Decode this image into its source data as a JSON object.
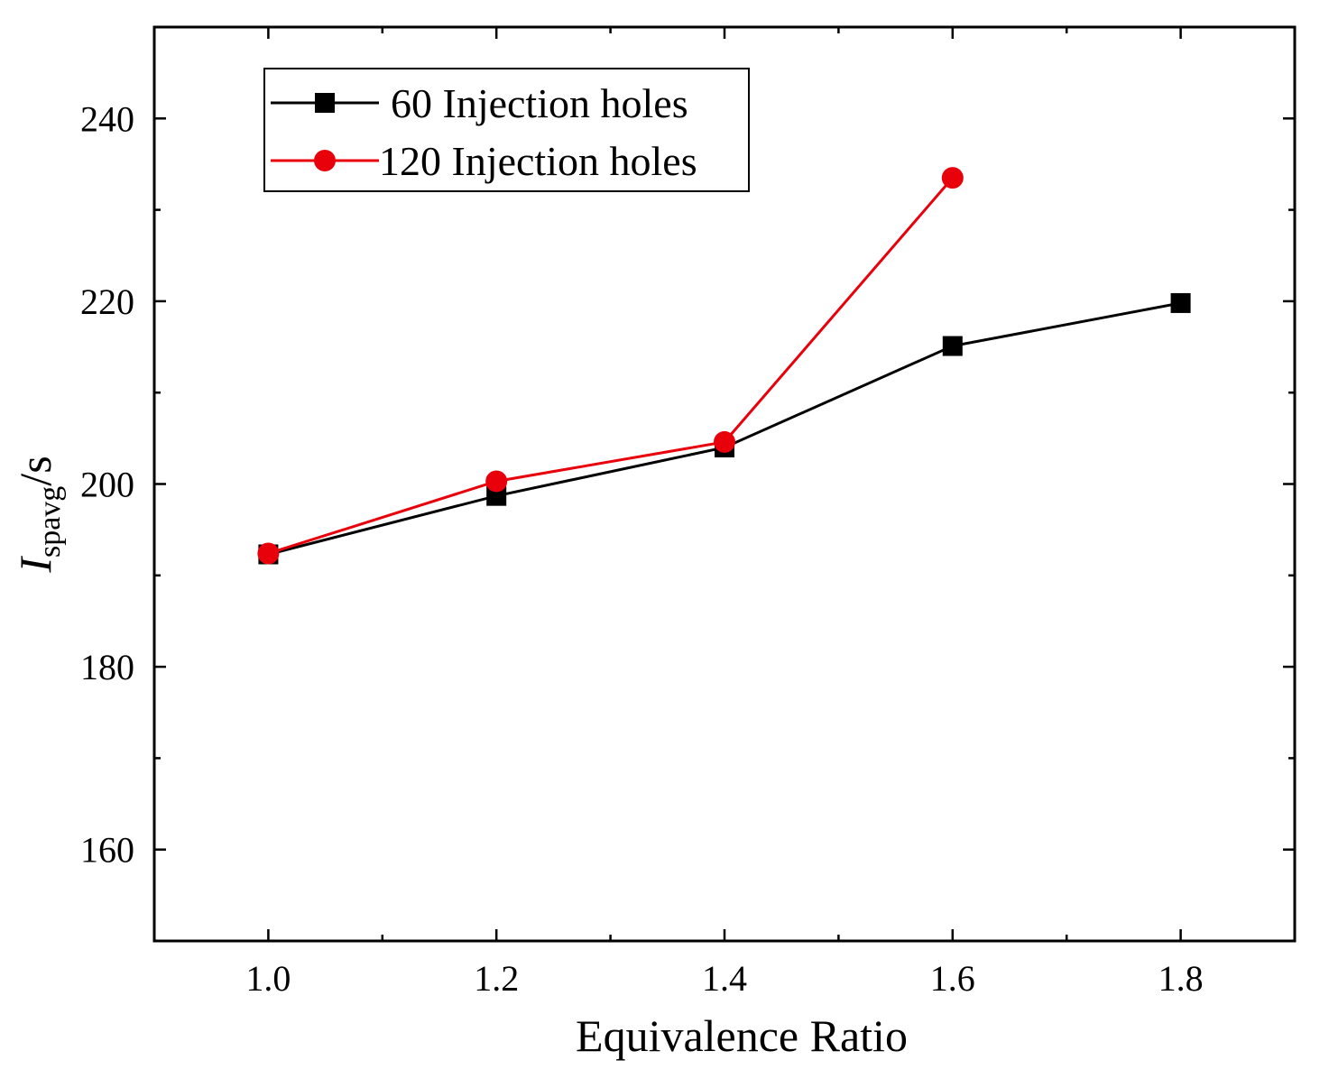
{
  "chart_data": {
    "type": "line",
    "title": "",
    "xlabel": "Equivalence Ratio",
    "ylabel": {
      "main": "I",
      "subscript": "spavg",
      "suffix": "/s"
    },
    "xlim": [
      0.9,
      1.9
    ],
    "ylim": [
      150,
      250
    ],
    "xticks": [
      1.0,
      1.2,
      1.4,
      1.6,
      1.8
    ],
    "xtick_labels": [
      "1.0",
      "1.2",
      "1.4",
      "1.6",
      "1.8"
    ],
    "xminor": [
      1.1,
      1.3,
      1.5,
      1.7
    ],
    "yticks": [
      160,
      180,
      200,
      220,
      240
    ],
    "ytick_labels": [
      "160",
      "180",
      "200",
      "220",
      "240"
    ],
    "yminor": [
      170,
      190,
      210,
      230
    ],
    "grid": false,
    "legend_position": "top-left",
    "series": [
      {
        "name": "60 Injection holes",
        "color": "#000000",
        "marker": "square",
        "x": [
          1.0,
          1.2,
          1.4,
          1.6,
          1.8
        ],
        "y": [
          192.3,
          198.7,
          204.0,
          215.1,
          219.8
        ]
      },
      {
        "name": "120 Injection holes",
        "color": "#e8000b",
        "marker": "circle",
        "x": [
          1.0,
          1.2,
          1.4,
          1.6
        ],
        "y": [
          192.4,
          200.3,
          204.6,
          233.5
        ]
      }
    ]
  }
}
